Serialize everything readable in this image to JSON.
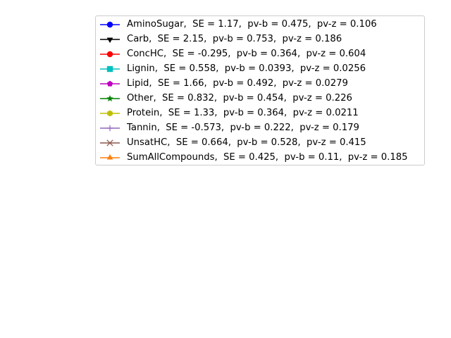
{
  "chart_data": {
    "type": "line",
    "title": "",
    "xlabel": "",
    "ylabel": "",
    "axes_visible": false,
    "grid": false,
    "legend_placement": "upper-right",
    "series": [
      {
        "name": "AminoSugar,  SE = 1.17,  pv-b = 0.475,  pv-z = 0.106",
        "color": "#0000ff",
        "marker": "circle",
        "values": []
      },
      {
        "name": "Carb,  SE = 2.15,  pv-b = 0.753,  pv-z = 0.186",
        "color": "#000000",
        "marker": "triangle-down",
        "values": []
      },
      {
        "name": "ConcHC,  SE = -0.295,  pv-b = 0.364,  pv-z = 0.604",
        "color": "#ff0000",
        "marker": "circle",
        "values": []
      },
      {
        "name": "Lignin,  SE = 0.558,  pv-b = 0.0393,  pv-z = 0.0256",
        "color": "#00bfbf",
        "marker": "square",
        "values": []
      },
      {
        "name": "Lipid,  SE = 1.66,  pv-b = 0.492,  pv-z = 0.0279",
        "color": "#bf00bf",
        "marker": "pentagon",
        "values": []
      },
      {
        "name": "Other,  SE = 0.832,  pv-b = 0.454,  pv-z = 0.226",
        "color": "#008000",
        "marker": "star",
        "values": []
      },
      {
        "name": "Protein,  SE = 1.33,  pv-b = 0.364,  pv-z = 0.0211",
        "color": "#bfbf00",
        "marker": "hexagon",
        "values": []
      },
      {
        "name": "Tannin,  SE = -0.573,  pv-b = 0.222,  pv-z = 0.179",
        "color": "#9467bd",
        "marker": "plus",
        "values": []
      },
      {
        "name": "UnsatHC,  SE = 0.664,  pv-b = 0.528,  pv-z = 0.415",
        "color": "#8c564b",
        "marker": "x",
        "values": []
      },
      {
        "name": "SumAllCompounds,  SE = 0.425,  pv-b = 0.11,  pv-z = 0.185",
        "color": "#ff7f0e",
        "marker": "triangle-up",
        "values": []
      }
    ]
  }
}
